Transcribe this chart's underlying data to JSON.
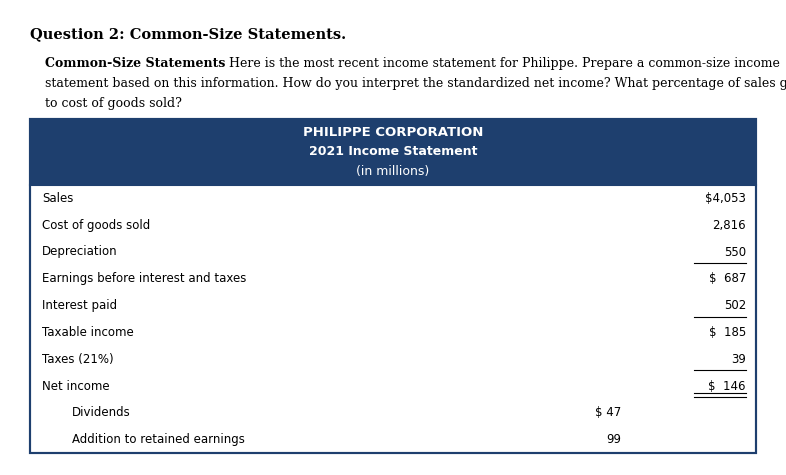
{
  "title": "Question 2: Common-Size Statements.",
  "bold_phrase": "Common-Size Statements",
  "body_rest_line1": " Here is the most recent income statement for Philippe. Prepare a common-size income",
  "body_line2": "statement based on this information. How do you interpret the standardized net income? What percentage of sales goes",
  "body_line3": "to cost of goods sold?",
  "table_header_line1": "PHILIPPE CORPORATION",
  "table_header_line2": "2021 Income Statement",
  "table_header_line3": "(in millions)",
  "header_bg": "#1e3f6e",
  "header_text_color": "#ffffff",
  "table_border_color": "#1e3f6e",
  "rows": [
    {
      "label": "Sales",
      "col1": "",
      "col2": "$4,053",
      "underline": false,
      "double_underline": false,
      "indent": false
    },
    {
      "label": "Cost of goods sold",
      "col1": "",
      "col2": "2,816",
      "underline": false,
      "double_underline": false,
      "indent": false
    },
    {
      "label": "Depreciation",
      "col1": "",
      "col2": "550",
      "underline": true,
      "double_underline": false,
      "indent": false
    },
    {
      "label": "Earnings before interest and taxes",
      "col1": "",
      "col2": "$  687",
      "underline": false,
      "double_underline": false,
      "indent": false
    },
    {
      "label": "Interest paid",
      "col1": "",
      "col2": "502",
      "underline": true,
      "double_underline": false,
      "indent": false
    },
    {
      "label": "Taxable income",
      "col1": "",
      "col2": "$  185",
      "underline": false,
      "double_underline": false,
      "indent": false
    },
    {
      "label": "Taxes (21%)",
      "col1": "",
      "col2": "39",
      "underline": true,
      "double_underline": false,
      "indent": false
    },
    {
      "label": "Net income",
      "col1": "",
      "col2": "$  146",
      "underline": false,
      "double_underline": true,
      "indent": false
    },
    {
      "label": "Dividends",
      "col1": "$ 47",
      "col2": "",
      "underline": false,
      "double_underline": false,
      "indent": true
    },
    {
      "label": "Addition to retained earnings",
      "col1": "99",
      "col2": "",
      "underline": false,
      "double_underline": false,
      "indent": true
    }
  ],
  "fig_width": 7.86,
  "fig_height": 4.75,
  "dpi": 100
}
